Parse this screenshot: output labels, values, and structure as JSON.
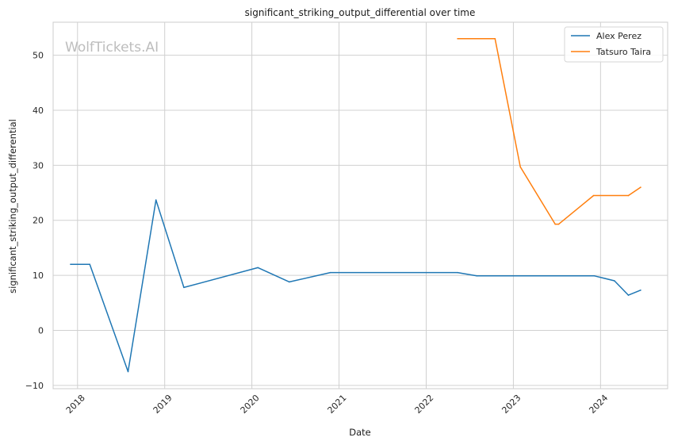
{
  "chart_data": {
    "type": "line",
    "title": "significant_striking_output_differential over time",
    "xlabel": "Date",
    "ylabel": "significant_striking_output_differential",
    "watermark": "WolfTickets.AI",
    "x_ticks": [
      "2018",
      "2019",
      "2020",
      "2021",
      "2022",
      "2023",
      "2024"
    ],
    "y_ticks": [
      "−10",
      "0",
      "10",
      "20",
      "30",
      "40",
      "50"
    ],
    "xlim": [
      2017.72,
      2024.77
    ],
    "ylim": [
      -10.6,
      56
    ],
    "grid": true,
    "legend_position": "top-right",
    "series": [
      {
        "name": "Alex Perez",
        "color": "#1f77b4",
        "points": [
          [
            2017.92,
            12.0
          ],
          [
            2018.14,
            12.0
          ],
          [
            2018.58,
            -7.5
          ],
          [
            2018.9,
            23.7
          ],
          [
            2019.22,
            7.8
          ],
          [
            2020.07,
            11.4
          ],
          [
            2020.43,
            8.8
          ],
          [
            2020.9,
            10.5
          ],
          [
            2022.36,
            10.5
          ],
          [
            2022.58,
            9.9
          ],
          [
            2023.93,
            9.9
          ],
          [
            2024.16,
            9.0
          ],
          [
            2024.32,
            6.4
          ],
          [
            2024.46,
            7.3
          ]
        ]
      },
      {
        "name": "Tatsuro Taira",
        "color": "#ff7f0e",
        "points": [
          [
            2022.36,
            53.0
          ],
          [
            2022.79,
            53.0
          ],
          [
            2023.08,
            29.7
          ],
          [
            2023.48,
            19.3
          ],
          [
            2023.52,
            19.3
          ],
          [
            2023.92,
            24.5
          ],
          [
            2024.32,
            24.5
          ],
          [
            2024.46,
            26.0
          ]
        ]
      }
    ]
  }
}
